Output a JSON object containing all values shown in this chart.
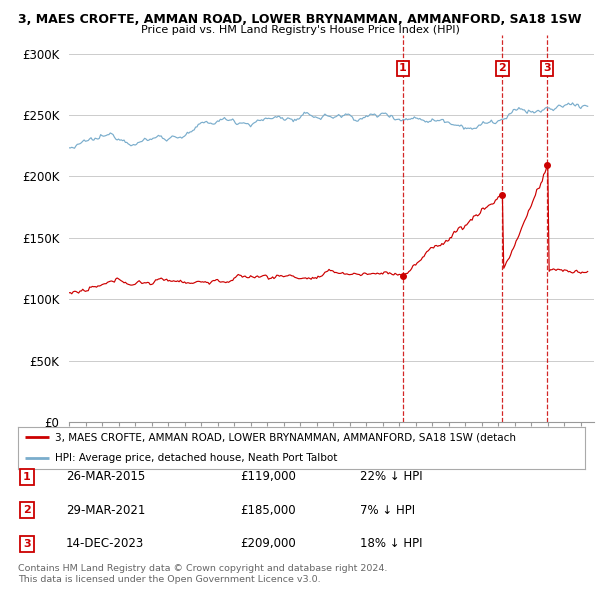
{
  "title1": "3, MAES CROFTE, AMMAN ROAD, LOWER BRYNAMMAN, AMMANFORD, SA18 1SW",
  "title2": "Price paid vs. HM Land Registry's House Price Index (HPI)",
  "ylabel_ticks": [
    "£0",
    "£50K",
    "£100K",
    "£150K",
    "£200K",
    "£250K",
    "£300K"
  ],
  "ytick_vals": [
    0,
    50000,
    100000,
    150000,
    200000,
    250000,
    300000
  ],
  "ylim": [
    0,
    315000
  ],
  "xlim_start": 1995.0,
  "xlim_end": 2026.8,
  "transactions": [
    {
      "num": 1,
      "date_str": "26-MAR-2015",
      "price": 119000,
      "pct": "22%",
      "direction": "↓",
      "x_year": 2015.23
    },
    {
      "num": 2,
      "date_str": "29-MAR-2021",
      "price": 185000,
      "pct": "7%",
      "direction": "↓",
      "x_year": 2021.25
    },
    {
      "num": 3,
      "date_str": "14-DEC-2023",
      "price": 209000,
      "pct": "18%",
      "direction": "↓",
      "x_year": 2023.96
    }
  ],
  "legend_line1": "3, MAES CROFTE, AMMAN ROAD, LOWER BRYNAMMAN, AMMANFORD, SA18 1SW (detach",
  "legend_line2": "HPI: Average price, detached house, Neath Port Talbot",
  "footer1": "Contains HM Land Registry data © Crown copyright and database right 2024.",
  "footer2": "This data is licensed under the Open Government Licence v3.0.",
  "line_color_red": "#cc0000",
  "line_color_blue": "#7aadcc",
  "vline_color": "#cc0000",
  "background_color": "#ffffff",
  "grid_color": "#cccccc",
  "num_box_color": "#cc0000"
}
